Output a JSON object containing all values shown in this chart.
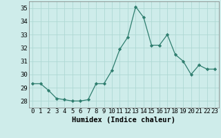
{
  "x": [
    0,
    1,
    2,
    3,
    4,
    5,
    6,
    7,
    8,
    9,
    10,
    11,
    12,
    13,
    14,
    15,
    16,
    17,
    18,
    19,
    20,
    21,
    22,
    23
  ],
  "y": [
    29.3,
    29.3,
    28.8,
    28.2,
    28.1,
    28.0,
    28.0,
    28.1,
    29.3,
    29.3,
    30.3,
    31.9,
    32.8,
    35.1,
    34.3,
    32.2,
    32.2,
    33.0,
    31.5,
    31.0,
    30.0,
    30.7,
    30.4,
    30.4
  ],
  "line_color": "#2e7d6e",
  "marker": "D",
  "marker_size": 2.2,
  "bg_color": "#ceecea",
  "grid_color": "#aed8d4",
  "xlabel": "Humidex (Indice chaleur)",
  "xlim": [
    -0.5,
    23.5
  ],
  "ylim": [
    27.5,
    35.5
  ],
  "yticks": [
    28,
    29,
    30,
    31,
    32,
    33,
    34,
    35
  ],
  "xticks": [
    0,
    1,
    2,
    3,
    4,
    5,
    6,
    7,
    8,
    9,
    10,
    11,
    12,
    13,
    14,
    15,
    16,
    17,
    18,
    19,
    20,
    21,
    22,
    23
  ],
  "xlabel_fontsize": 7.5,
  "tick_fontsize": 6.5
}
